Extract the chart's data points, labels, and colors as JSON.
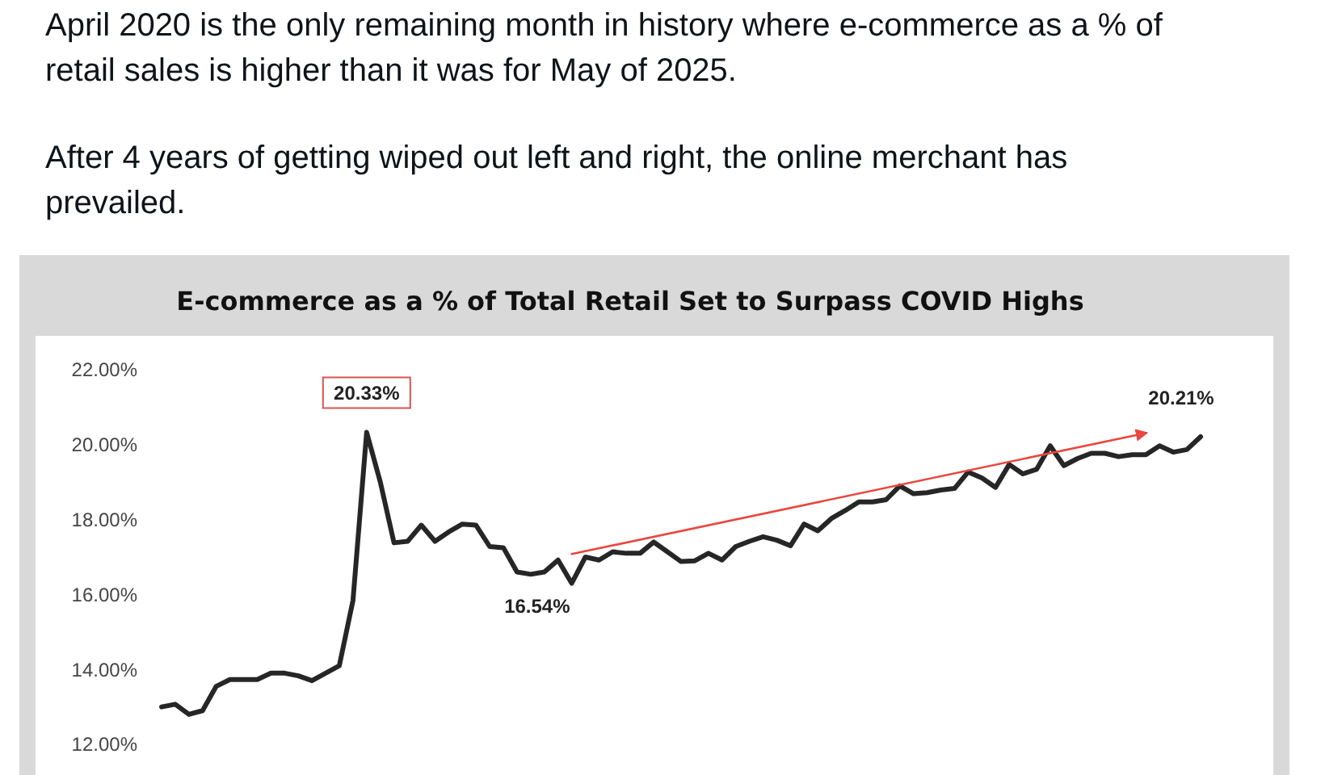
{
  "chart_data": {
    "type": "line",
    "title": "E-commerce as a % of Total Retail Set to Surpass COVID Highs",
    "annotations": [
      "April 2020 is the only remaining month in history where e-commerce as a % of retail sales is higher than it was for May of 2025.",
      "After 4 years of getting wiped out left and right, the online merchant has prevailed."
    ],
    "categories": [
      null,
      null,
      null,
      null,
      null,
      null,
      null,
      null,
      null,
      null,
      null,
      null,
      null,
      null,
      null,
      null,
      null,
      null,
      null,
      null,
      null,
      null,
      null,
      null,
      null,
      null,
      null,
      null,
      null,
      null,
      null,
      null,
      null,
      null,
      null,
      null,
      null,
      null,
      null,
      null,
      null,
      null,
      null,
      null,
      null,
      null,
      null,
      null,
      null,
      null,
      null,
      null,
      null,
      null,
      null,
      null,
      null,
      null,
      null,
      null,
      null,
      null,
      null,
      null,
      null,
      null,
      null,
      null,
      null,
      null,
      null,
      null,
      null,
      null,
      null,
      null,
      null
    ],
    "series": [
      {
        "color": "#262626",
        "values": [
          13.0,
          13.07,
          12.8,
          12.9,
          13.55,
          13.73,
          13.73,
          13.73,
          13.9,
          13.9,
          13.83,
          13.7,
          13.9,
          14.1,
          15.84,
          20.33,
          19.0,
          17.38,
          17.42,
          17.85,
          17.42,
          17.67,
          17.88,
          17.85,
          17.28,
          17.25,
          16.6,
          16.54,
          16.6,
          16.92,
          16.3,
          17.0,
          16.92,
          17.14,
          17.1,
          17.1,
          17.4,
          17.14,
          16.88,
          16.9,
          17.1,
          16.92,
          17.28,
          17.42,
          17.54,
          17.45,
          17.3,
          17.88,
          17.7,
          18.03,
          18.24,
          18.47,
          18.47,
          18.53,
          18.9,
          18.69,
          18.72,
          18.79,
          18.83,
          19.27,
          19.11,
          18.86,
          19.47,
          19.22,
          19.34,
          19.97,
          19.44,
          19.63,
          19.77,
          19.77,
          19.68,
          19.73,
          19.73,
          19.97,
          19.8,
          19.87,
          20.21
        ],
        "value_labels": [
          null,
          null,
          null,
          null,
          null,
          null,
          null,
          null,
          null,
          null,
          null,
          null,
          null,
          null,
          null,
          "20.33%",
          null,
          null,
          null,
          null,
          null,
          null,
          null,
          null,
          null,
          null,
          null,
          "16.54%",
          null,
          null,
          null,
          null,
          null,
          null,
          null,
          null,
          null,
          null,
          null,
          null,
          null,
          null,
          null,
          null,
          null,
          null,
          null,
          null,
          null,
          null,
          null,
          null,
          null,
          null,
          null,
          null,
          null,
          null,
          null,
          null,
          null,
          null,
          null,
          null,
          null,
          null,
          null,
          null,
          null,
          null,
          null,
          null,
          null,
          null,
          null,
          null,
          "20.21%"
        ]
      },
      {
        "color": "#e8473f",
        "values": [
          null,
          null,
          null,
          null,
          null,
          null,
          null,
          null,
          null,
          null,
          null,
          null,
          null,
          null,
          null,
          null,
          null,
          null,
          null,
          null,
          null,
          null,
          null,
          null,
          null,
          null,
          null,
          null,
          null,
          null,
          17.08,
          null,
          null,
          null,
          null,
          null,
          null,
          null,
          null,
          null,
          null,
          null,
          null,
          null,
          null,
          null,
          null,
          null,
          null,
          null,
          null,
          null,
          null,
          null,
          null,
          null,
          null,
          null,
          null,
          null,
          null,
          null,
          null,
          null,
          null,
          null,
          null,
          null,
          null,
          null,
          null,
          null,
          20.31,
          null,
          null,
          null,
          null
        ]
      }
    ],
    "ylim": [
      12,
      22
    ],
    "yticks": [
      {
        "value": 12,
        "label": "12.00%"
      },
      {
        "value": 14,
        "label": "14.00%"
      },
      {
        "value": 16,
        "label": "16.00%"
      },
      {
        "value": 18,
        "label": "18.00%"
      },
      {
        "value": 20,
        "label": "20.00%"
      },
      {
        "value": 22,
        "label": "22.00%"
      }
    ],
    "grid": false
  }
}
